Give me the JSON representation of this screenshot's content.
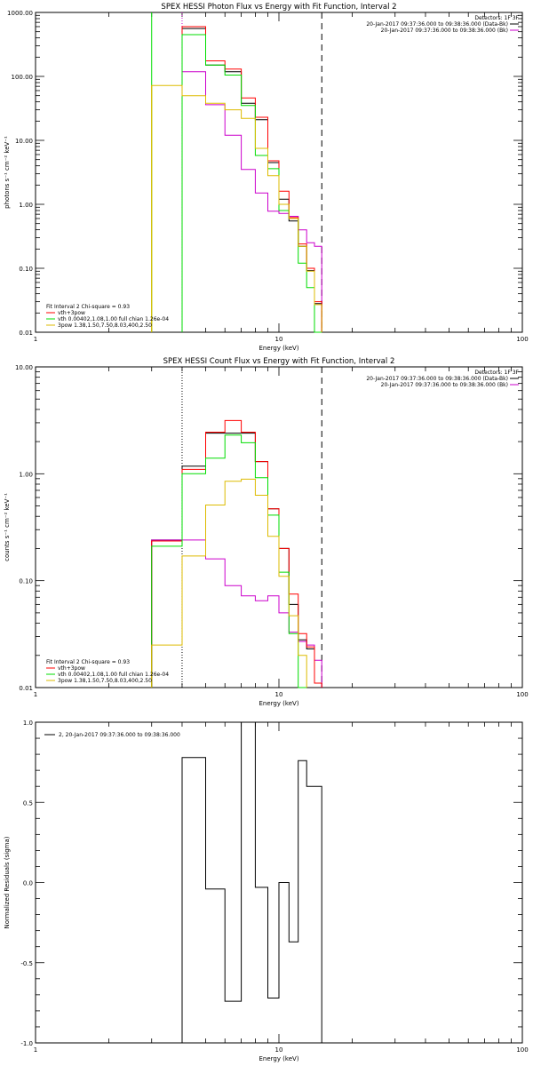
{
  "chart_data": [
    {
      "type": "line",
      "title": "SPEX HESSI Photon Flux vs Energy with Fit Function, Interval 2",
      "xlabel": "Energy (keV)",
      "ylabel": "photons s⁻¹ cm⁻² keV⁻¹",
      "xscale": "log",
      "yscale": "log",
      "xlim": [
        1,
        100
      ],
      "ylim": [
        0.01,
        1000
      ],
      "x_ticks": [
        "1",
        "10",
        "100"
      ],
      "y_ticks": [
        "0.01",
        "0.10",
        "1.00",
        "10.00",
        "100.00",
        "1000.00"
      ],
      "legend_top": [
        "Detectors: 1F 3F",
        "20-Jan-2017 09:37:36.000 to 09:38:36.000 (Data-Bk)",
        "20-Jan-2017 09:37:36.000 to 09:38:36.000 (Bk)"
      ],
      "legend_bottom": [
        "Fit Interval 2   Chi-square = 0.93",
        "vth+3pow",
        "vth 0.00402,1.08,1.00  full chian 1.26e-04",
        "3pow 1.38,1.50,7.50,8.03,400,2.50"
      ],
      "vlines": [
        {
          "x": 4,
          "style": "dotted",
          "color": "#cc00cc"
        },
        {
          "x": 15,
          "style": "dashed",
          "color": "#000000"
        }
      ],
      "edges": [
        3,
        4,
        5,
        6,
        7,
        8,
        9,
        10,
        11,
        12,
        13,
        14,
        15,
        16,
        17
      ],
      "series": [
        {
          "color": "#000000",
          "values": [
            null,
            560,
            150,
            118,
            38,
            21,
            4.5,
            1.2,
            0.55,
            0.22,
            0.092,
            0.028,
            null,
            null
          ]
        },
        {
          "color": "#cc00cc",
          "values": [
            null,
            118,
            36,
            12,
            3.5,
            1.5,
            0.78,
            0.72,
            0.65,
            0.4,
            0.25,
            0.22,
            null,
            null
          ]
        },
        {
          "color": "#ff0000",
          "values": [
            null,
            600,
            175,
            130,
            46,
            23,
            4.8,
            1.6,
            0.62,
            0.24,
            0.1,
            0.03,
            null,
            null
          ]
        },
        {
          "color": "#00dd00",
          "values": [
            null,
            450,
            150,
            105,
            35,
            5.8,
            3.6,
            0.8,
            0.6,
            0.12,
            0.05,
            0.01,
            null,
            null
          ]
        },
        {
          "color": "#ddbb00",
          "values": [
            72,
            50,
            38,
            30,
            22,
            7.5,
            2.8,
            1.0,
            0.6,
            0.22,
            0.09,
            0.027,
            null,
            null
          ]
        }
      ],
      "extra_drops": [
        {
          "x": 3,
          "color": "#00dd00",
          "top": 1000
        },
        {
          "x": 3,
          "color": "#ddbb00",
          "top": 72
        }
      ]
    },
    {
      "type": "line",
      "title": "SPEX HESSI Count Flux vs Energy with Fit Function, Interval 2",
      "xlabel": "Energy (keV)",
      "ylabel": "counts s⁻¹ cm⁻² keV⁻¹",
      "xscale": "log",
      "yscale": "log",
      "xlim": [
        1,
        100
      ],
      "ylim": [
        0.01,
        10
      ],
      "x_ticks": [
        "1",
        "10",
        "100"
      ],
      "y_ticks": [
        "0.01",
        "0.10",
        "1.00",
        "10.00"
      ],
      "legend_top": [
        "Detectors: 1F 3F",
        "20-Jan-2017 09:37:36.000 to 09:38:36.000 (Data-Bk)",
        "20-Jan-2017 09:37:36.000 to 09:38:36.000 (Bk)"
      ],
      "legend_bottom": [
        "Fit Interval 2   Chi-square = 0.93",
        "vth+3pow",
        "vth 0.00402,1.08,1.00  full chian 1.26e-04",
        "3pow 1.38,1.50,7.50,8.03,400,2.50"
      ],
      "vlines": [
        {
          "x": 4,
          "style": "dotted",
          "color": "#000000"
        },
        {
          "x": 15,
          "style": "dashed",
          "color": "#000000"
        }
      ],
      "edges": [
        3,
        4,
        5,
        6,
        7,
        8,
        9,
        10,
        11,
        12,
        13,
        14,
        15
      ],
      "series": [
        {
          "color": "#000000",
          "values": [
            0.24,
            1.18,
            2.4,
            2.4,
            2.4,
            1.3,
            0.47,
            0.2,
            0.06,
            0.028,
            0.023,
            0.011
          ]
        },
        {
          "color": "#cc00cc",
          "values": [
            0.24,
            0.24,
            0.16,
            0.09,
            0.072,
            0.065,
            0.072,
            0.05,
            0.033,
            0.027,
            0.025,
            0.018
          ]
        },
        {
          "color": "#ff0000",
          "values": [
            0.235,
            1.1,
            2.45,
            3.15,
            2.45,
            1.3,
            0.47,
            0.2,
            0.075,
            0.032,
            0.024,
            0.011
          ]
        },
        {
          "color": "#00dd00",
          "values": [
            0.21,
            1.0,
            1.4,
            2.3,
            1.95,
            0.92,
            0.41,
            0.12,
            0.032,
            0.01,
            null,
            null
          ]
        },
        {
          "color": "#ddbb00",
          "values": [
            0.025,
            0.17,
            0.51,
            0.85,
            0.89,
            0.63,
            0.26,
            0.11,
            0.047,
            0.02,
            null,
            null
          ]
        }
      ]
    },
    {
      "type": "line",
      "title": "",
      "xlabel": "Energy (keV)",
      "ylabel": "Normalized Residuals (sigma)",
      "xscale": "log",
      "yscale": "linear",
      "xlim": [
        1,
        100
      ],
      "ylim": [
        -1.0,
        1.0
      ],
      "x_ticks": [
        "1",
        "10",
        "100"
      ],
      "y_ticks": [
        "-1.0",
        "-0.5",
        "0.0",
        "0.5",
        "1.0"
      ],
      "legend_top": [
        "2, 20-Jan-2017 09:37:36.000 to 09:38:36.000"
      ],
      "legend_bottom": [],
      "vlines": [],
      "edges": [
        4,
        5,
        6,
        7,
        8,
        9,
        10,
        11,
        12,
        13,
        14,
        15
      ],
      "series": [
        {
          "color": "#000000",
          "values": [
            0.78,
            -0.04,
            -0.74,
            1.0,
            -0.03,
            -0.72,
            0.0,
            -0.37,
            0.76,
            0.6,
            0.6
          ]
        }
      ]
    }
  ]
}
